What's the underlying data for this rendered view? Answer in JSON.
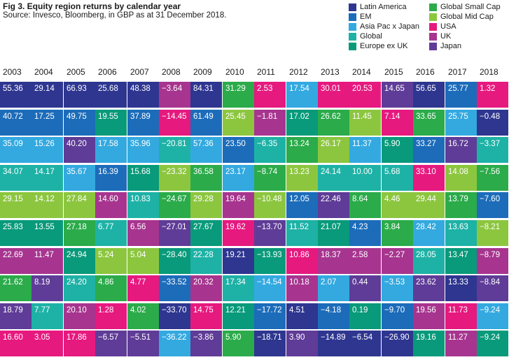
{
  "title": "Fig 3. Equity region returns by calendar year",
  "source": "Source: Invesco, Bloomberg, in GBP as at 31 December 2018.",
  "legend": [
    {
      "name": "Latin America",
      "color": "#2e3690"
    },
    {
      "name": "EM",
      "color": "#1c6cba"
    },
    {
      "name": "Asia Pac x Japan",
      "color": "#33a9e0"
    },
    {
      "name": "Global",
      "color": "#1eb2a6"
    },
    {
      "name": "Europe ex UK",
      "color": "#089a7a"
    },
    {
      "name": "Global Small Cap",
      "color": "#2bab4a"
    },
    {
      "name": "Global Mid Cap",
      "color": "#8cc63f"
    },
    {
      "name": "USA",
      "color": "#e6197f"
    },
    {
      "name": "UK",
      "color": "#a7358f"
    },
    {
      "name": "Japan",
      "color": "#5f3c97"
    }
  ],
  "chart_data": {
    "type": "table",
    "title": "Fig 3. Equity region returns by calendar year",
    "years": [
      "2003",
      "2004",
      "2005",
      "2006",
      "2007",
      "2008",
      "2009",
      "2010",
      "2011",
      "2012",
      "2013",
      "2014",
      "2015",
      "2016",
      "2017",
      "2018"
    ],
    "columns": [
      {
        "year": "2003",
        "values": [
          "55.36",
          "40.72",
          "35.09",
          "34.07",
          "29.15",
          "25.83",
          "22.69",
          "21.62",
          "18.79",
          "16.60"
        ],
        "regions": [
          "Latin America",
          "EM",
          "Asia Pac x Japan",
          "Global",
          "Global Mid Cap",
          "Europe ex UK",
          "UK",
          "Global Small Cap",
          "Japan",
          "USA"
        ]
      },
      {
        "year": "2004",
        "values": [
          "29.14",
          "17.25",
          "15.26",
          "14.17",
          "14.12",
          "13.55",
          "11.47",
          "8.19",
          "7.77",
          "3.05"
        ],
        "regions": [
          "Latin America",
          "EM",
          "Asia Pac x Japan",
          "Global",
          "Global Mid Cap",
          "Europe ex UK",
          "UK",
          "Japan",
          "Global",
          "USA"
        ]
      },
      {
        "year": "2005",
        "values": [
          "66.93",
          "49.75",
          "40.20",
          "35.67",
          "27.84",
          "27.18",
          "24.94",
          "24.20",
          "20.10",
          "17.86"
        ],
        "regions": [
          "Latin America",
          "EM",
          "Japan",
          "Asia Pac x Japan",
          "Global Mid Cap",
          "Global Small Cap",
          "Europe ex UK",
          "Global",
          "UK",
          "USA"
        ]
      },
      {
        "year": "2006",
        "values": [
          "25.68",
          "19.55",
          "17.58",
          "16.39",
          "14.60",
          "6.77",
          "5.24",
          "4.86",
          "1.28",
          "-6.57"
        ],
        "regions": [
          "Latin America",
          "Europe ex UK",
          "Asia Pac x Japan",
          "EM",
          "UK",
          "Global",
          "Global Mid Cap",
          "Global Small Cap",
          "USA",
          "Japan"
        ]
      },
      {
        "year": "2007",
        "values": [
          "48.38",
          "37.89",
          "35.96",
          "15.68",
          "10.83",
          "6.56",
          "5.04",
          "4.77",
          "4.02",
          "-5.51"
        ],
        "regions": [
          "Latin America",
          "EM",
          "Asia Pac x Japan",
          "Europe ex UK",
          "Global",
          "UK",
          "Global Mid Cap",
          "USA",
          "Global Small Cap",
          "Japan"
        ]
      },
      {
        "year": "2008",
        "values": [
          "-3.64",
          "-14.45",
          "-20.81",
          "-23.32",
          "-24.67",
          "-27.01",
          "-28.40",
          "-33.52",
          "-33.70",
          "-36.22"
        ],
        "regions": [
          "UK",
          "USA",
          "Global",
          "Global Mid Cap",
          "Global Small Cap",
          "Japan",
          "Europe ex UK",
          "EM",
          "Latin America",
          "Asia Pac x Japan"
        ]
      },
      {
        "year": "2009",
        "values": [
          "84.31",
          "61.49",
          "57.36",
          "36.58",
          "29.28",
          "27.67",
          "22.28",
          "20.32",
          "14.75",
          "-3.86"
        ],
        "regions": [
          "Latin America",
          "EM",
          "Asia Pac x Japan",
          "Global Small Cap",
          "Global Mid Cap",
          "Europe ex UK",
          "Global",
          "UK",
          "USA",
          "Japan"
        ]
      },
      {
        "year": "2010",
        "values": [
          "31.29",
          "25.45",
          "23.50",
          "23.17",
          "19.64",
          "19.62",
          "19.21",
          "17.34",
          "12.21",
          "5.90"
        ],
        "regions": [
          "Global Small Cap",
          "Global Mid Cap",
          "EM",
          "Asia Pac x Japan",
          "UK",
          "USA",
          "Latin America",
          "Global",
          "Europe ex UK",
          "Global Small Cap"
        ]
      },
      {
        "year": "2011",
        "values": [
          "2.53",
          "-1.81",
          "-6.35",
          "-8.74",
          "-10.48",
          "-13.70",
          "-13.93",
          "-14.54",
          "-17.72",
          "-18.71"
        ],
        "regions": [
          "USA",
          "UK",
          "Global",
          "Global Small Cap",
          "Global Mid Cap",
          "Japan",
          "Europe ex UK",
          "Asia Pac x Japan",
          "EM",
          "Latin America"
        ]
      },
      {
        "year": "2012",
        "values": [
          "17.54",
          "17.02",
          "13.24",
          "13.23",
          "12.05",
          "11.52",
          "10.86",
          "10.18",
          "4.51",
          "3.90"
        ],
        "regions": [
          "Asia Pac x Japan",
          "Europe ex UK",
          "Global Small Cap",
          "Global Mid Cap",
          "EM",
          "Global",
          "USA",
          "UK",
          "Latin America",
          "Japan"
        ]
      },
      {
        "year": "2013",
        "values": [
          "30.01",
          "26.62",
          "26.17",
          "24.14",
          "22.46",
          "21.07",
          "18.37",
          "2.07",
          "-4.18",
          "-14.89"
        ],
        "regions": [
          "USA",
          "Global Small Cap",
          "Global Mid Cap",
          "Global",
          "Japan",
          "Europe ex UK",
          "UK",
          "Asia Pac x Japan",
          "EM",
          "Latin America"
        ]
      },
      {
        "year": "2014",
        "values": [
          "20.53",
          "11.45",
          "11.37",
          "10.00",
          "8.64",
          "4.23",
          "2.58",
          "0.44",
          "0.19",
          "-6.54"
        ],
        "regions": [
          "USA",
          "Global Mid Cap",
          "Asia Pac x Japan",
          "Global",
          "Global Small Cap",
          "EM",
          "UK",
          "Japan",
          "Europe ex UK",
          "Latin America"
        ]
      },
      {
        "year": "2015",
        "values": [
          "14.65",
          "7.14",
          "5.90",
          "5.68",
          "4.46",
          "3.84",
          "-2.27",
          "-3.53",
          "-9.70",
          "-26.90"
        ],
        "regions": [
          "Japan",
          "USA",
          "Europe ex UK",
          "Global",
          "Global Mid Cap",
          "Global Small Cap",
          "UK",
          "Asia Pac x Japan",
          "EM",
          "Latin America"
        ]
      },
      {
        "year": "2016",
        "values": [
          "56.65",
          "33.65",
          "33.27",
          "33.10",
          "29.44",
          "28.42",
          "28.05",
          "23.62",
          "19.56",
          "19.16"
        ],
        "regions": [
          "Latin America",
          "Global Small Cap",
          "EM",
          "USA",
          "Global Mid Cap",
          "Asia Pac x Japan",
          "Global",
          "Japan",
          "UK",
          "Europe ex UK"
        ]
      },
      {
        "year": "2017",
        "values": [
          "25.77",
          "25.75",
          "16.72",
          "14.08",
          "13.79",
          "13.63",
          "13.47",
          "13.33",
          "11.73",
          "11.27"
        ],
        "regions": [
          "EM",
          "Asia Pac x Japan",
          "Japan",
          "Global Mid Cap",
          "Global Small Cap",
          "Global",
          "Europe ex UK",
          "Latin America",
          "USA",
          "UK"
        ]
      },
      {
        "year": "2018",
        "values": [
          "1.32",
          "-0.48",
          "-3.37",
          "-7.56",
          "-7.60",
          "-8.21",
          "-8.79",
          "-8.84",
          "-9.24",
          "-9.24"
        ],
        "regions": [
          "USA",
          "Latin America",
          "Global",
          "Global Small Cap",
          "EM",
          "Global Mid Cap",
          "UK",
          "Japan",
          "Asia Pac x Japan",
          "Europe ex UK"
        ]
      }
    ],
    "cell_colors": [
      [
        "#2e3690",
        "#1c6cba",
        "#33a9e0",
        "#1eb2a6",
        "#8cc63f",
        "#089a7a",
        "#a7358f",
        "#2bab4a",
        "#5f3c97",
        "#e6197f"
      ],
      [
        "#2e3690",
        "#1c6cba",
        "#33a9e0",
        "#1eb2a6",
        "#8cc63f",
        "#089a7a",
        "#a7358f",
        "#5f3c97",
        "#1eb2a6",
        "#e6197f"
      ],
      [
        "#2e3690",
        "#1c6cba",
        "#5f3c97",
        "#33a9e0",
        "#8cc63f",
        "#2bab4a",
        "#089a7a",
        "#1eb2a6",
        "#a7358f",
        "#e6197f"
      ],
      [
        "#2e3690",
        "#089a7a",
        "#33a9e0",
        "#1c6cba",
        "#a7358f",
        "#1eb2a6",
        "#8cc63f",
        "#2bab4a",
        "#e6197f",
        "#5f3c97"
      ],
      [
        "#2e3690",
        "#1c6cba",
        "#33a9e0",
        "#089a7a",
        "#1eb2a6",
        "#a7358f",
        "#8cc63f",
        "#e6197f",
        "#2bab4a",
        "#5f3c97"
      ],
      [
        "#a7358f",
        "#e6197f",
        "#1eb2a6",
        "#8cc63f",
        "#2bab4a",
        "#5f3c97",
        "#089a7a",
        "#1c6cba",
        "#2e3690",
        "#33a9e0"
      ],
      [
        "#2e3690",
        "#1c6cba",
        "#33a9e0",
        "#2bab4a",
        "#8cc63f",
        "#089a7a",
        "#1eb2a6",
        "#a7358f",
        "#e6197f",
        "#5f3c97"
      ],
      [
        "#2bab4a",
        "#8cc63f",
        "#1c6cba",
        "#33a9e0",
        "#a7358f",
        "#e6197f",
        "#2e3690",
        "#1eb2a6",
        "#089a7a",
        "#2bab4a"
      ],
      [
        "#e6197f",
        "#a7358f",
        "#1eb2a6",
        "#2bab4a",
        "#8cc63f",
        "#5f3c97",
        "#089a7a",
        "#33a9e0",
        "#1c6cba",
        "#2e3690"
      ],
      [
        "#33a9e0",
        "#089a7a",
        "#2bab4a",
        "#8cc63f",
        "#1c6cba",
        "#1eb2a6",
        "#e6197f",
        "#a7358f",
        "#2e3690",
        "#5f3c97"
      ],
      [
        "#e6197f",
        "#2bab4a",
        "#8cc63f",
        "#1eb2a6",
        "#5f3c97",
        "#089a7a",
        "#a7358f",
        "#33a9e0",
        "#1c6cba",
        "#2e3690"
      ],
      [
        "#e6197f",
        "#8cc63f",
        "#33a9e0",
        "#1eb2a6",
        "#2bab4a",
        "#1c6cba",
        "#a7358f",
        "#5f3c97",
        "#089a7a",
        "#2e3690"
      ],
      [
        "#5f3c97",
        "#e6197f",
        "#089a7a",
        "#1eb2a6",
        "#8cc63f",
        "#2bab4a",
        "#a7358f",
        "#33a9e0",
        "#1c6cba",
        "#2e3690"
      ],
      [
        "#2e3690",
        "#2bab4a",
        "#1c6cba",
        "#e6197f",
        "#8cc63f",
        "#33a9e0",
        "#1eb2a6",
        "#5f3c97",
        "#a7358f",
        "#089a7a"
      ],
      [
        "#1c6cba",
        "#33a9e0",
        "#5f3c97",
        "#8cc63f",
        "#2bab4a",
        "#1eb2a6",
        "#089a7a",
        "#2e3690",
        "#e6197f",
        "#a7358f"
      ],
      [
        "#e6197f",
        "#2e3690",
        "#1eb2a6",
        "#2bab4a",
        "#1c6cba",
        "#8cc63f",
        "#a7358f",
        "#5f3c97",
        "#33a9e0",
        "#089a7a"
      ]
    ]
  }
}
